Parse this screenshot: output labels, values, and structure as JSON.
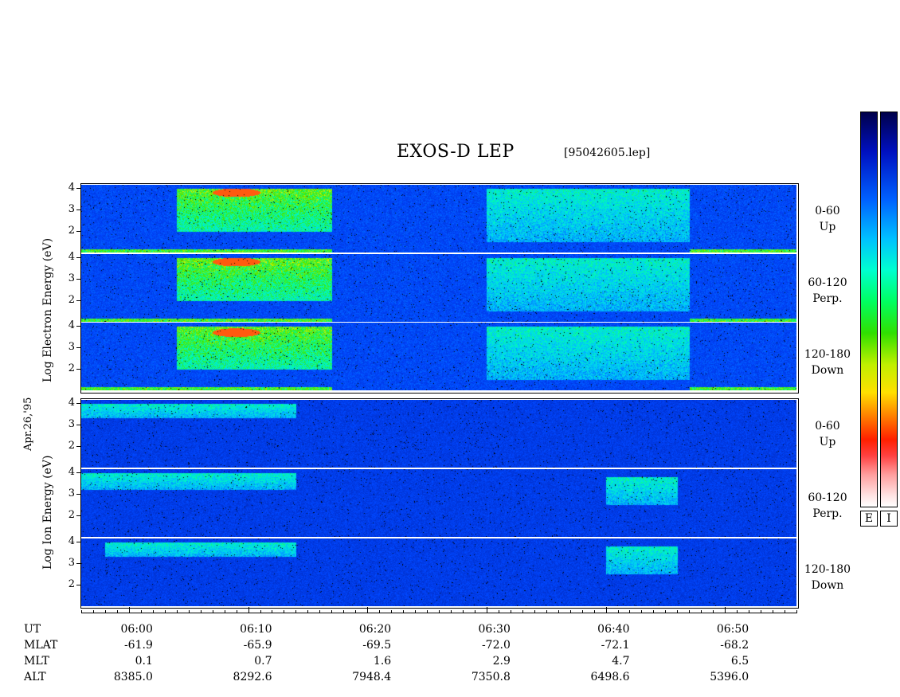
{
  "header": {
    "title": "EXOS-D LEP",
    "file": "[95042605.lep]"
  },
  "date_label": "Apr.26,'95",
  "y_labels": {
    "electron": "Log  Electron  Energy (eV)",
    "ion": "Log  Ion  Energy (eV)"
  },
  "ticks": [
    "4",
    "3",
    "2"
  ],
  "angles": [
    {
      "range": "0-60",
      "dir": "Up"
    },
    {
      "range": "60-120",
      "dir": "Perp."
    },
    {
      "range": "120-180",
      "dir": "Down"
    }
  ],
  "colorbar": {
    "labels": [
      "E",
      "I"
    ]
  },
  "footer": {
    "row_labels": [
      "UT",
      "MLAT",
      "MLT",
      "ALT"
    ],
    "ut": [
      "06:00",
      "06:10",
      "06:20",
      "06:30",
      "06:40",
      "06:50"
    ],
    "mlat": [
      "-61.9",
      "-65.9",
      "-69.5",
      "-72.0",
      "-72.1",
      "-68.2"
    ],
    "mlt": [
      "0.1",
      "0.7",
      "1.6",
      "2.9",
      "4.7",
      "6.5"
    ],
    "alt": [
      "8385.0",
      "8292.6",
      "7948.4",
      "7350.8",
      "6498.6",
      "5396.0"
    ]
  },
  "chart_data": {
    "type": "heatmap",
    "title": "EXOS-D LEP",
    "xlabel": "UT",
    "x_range": [
      "05:56",
      "06:56"
    ],
    "ylabel_electron": "Log Electron Energy (eV)",
    "ylabel_ion": "Log Ion Energy (eV)",
    "ylim": [
      1,
      4
    ],
    "panels": [
      {
        "species": "Electron",
        "pitch_angle": "0-60",
        "direction": "Up",
        "features": [
          {
            "x": [
              "06:04",
              "06:17"
            ],
            "y": [
              2,
              4
            ],
            "level": "high",
            "peak_ut": "06:09",
            "peak_log_energy": 3.8
          },
          {
            "x": [
              "06:30",
              "06:47"
            ],
            "y": [
              1.5,
              4
            ],
            "level": "medium"
          }
        ]
      },
      {
        "species": "Electron",
        "pitch_angle": "60-120",
        "direction": "Perp.",
        "features": [
          {
            "x": [
              "06:04",
              "06:17"
            ],
            "y": [
              2,
              4
            ],
            "level": "high",
            "peak_ut": "06:09",
            "peak_log_energy": 3.8
          },
          {
            "x": [
              "06:30",
              "06:47"
            ],
            "y": [
              1.5,
              4
            ],
            "level": "medium"
          }
        ]
      },
      {
        "species": "Electron",
        "pitch_angle": "120-180",
        "direction": "Down",
        "features": [
          {
            "x": [
              "06:04",
              "06:17"
            ],
            "y": [
              2,
              4
            ],
            "level": "high",
            "peak_ut": "06:09",
            "peak_log_energy": 3.7
          },
          {
            "x": [
              "06:30",
              "06:47"
            ],
            "y": [
              1.5,
              4
            ],
            "level": "medium"
          }
        ]
      },
      {
        "species": "Ion",
        "pitch_angle": "0-60",
        "direction": "Up",
        "features": [
          {
            "x": [
              "05:56",
              "06:14"
            ],
            "y": [
              3.3,
              4
            ],
            "level": "medium"
          }
        ]
      },
      {
        "species": "Ion",
        "pitch_angle": "60-120",
        "direction": "Perp.",
        "features": [
          {
            "x": [
              "05:56",
              "06:14"
            ],
            "y": [
              3.2,
              4
            ],
            "level": "medium"
          },
          {
            "x": [
              "06:40",
              "06:46"
            ],
            "y": [
              2.5,
              3.8
            ],
            "level": "medium"
          }
        ]
      },
      {
        "species": "Ion",
        "pitch_angle": "120-180",
        "direction": "Down",
        "features": [
          {
            "x": [
              "05:58",
              "06:14"
            ],
            "y": [
              3.3,
              4
            ],
            "level": "medium"
          },
          {
            "x": [
              "06:40",
              "06:46"
            ],
            "y": [
              2.5,
              3.8
            ],
            "level": "medium"
          }
        ]
      }
    ],
    "colorbar": {
      "range": [
        "low",
        "high"
      ],
      "labels": [
        "E",
        "I"
      ]
    }
  }
}
